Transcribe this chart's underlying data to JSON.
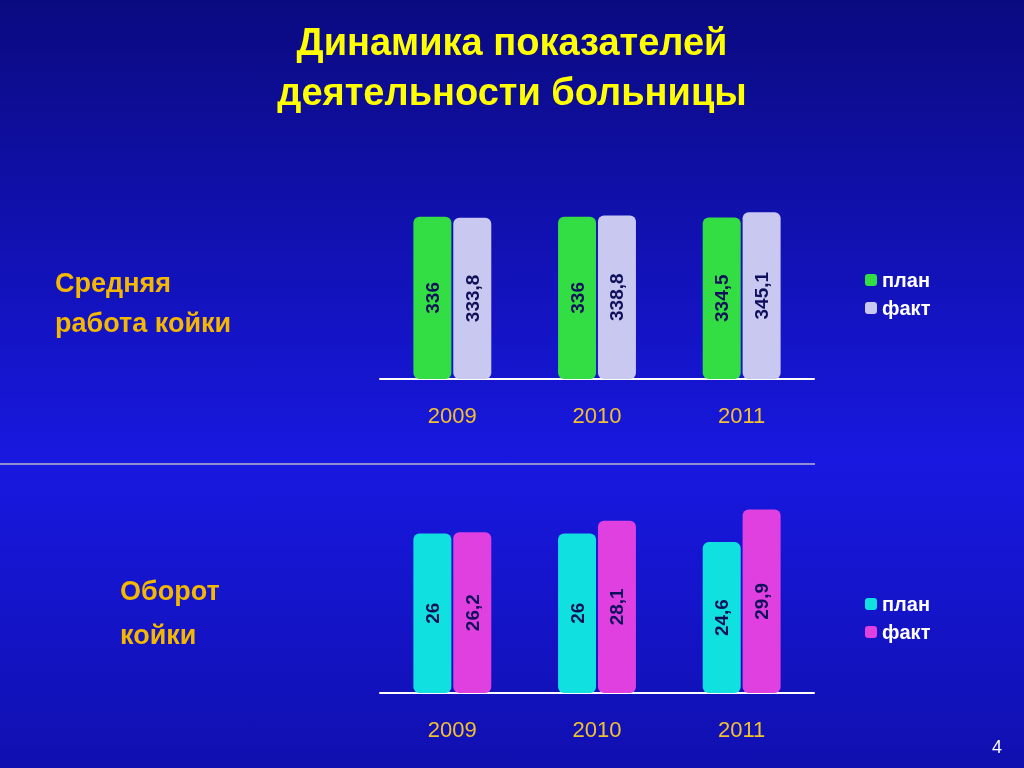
{
  "chart_data": [
    {
      "type": "bar",
      "title": "Динамика показателей\nдеятельности больницы",
      "subtitle": "Средняя\nработа койки",
      "categories": [
        "2009",
        "2010",
        "2011"
      ],
      "series": [
        {
          "name": "план",
          "color": "#33dd44",
          "values": [
            336,
            336,
            334.5
          ],
          "value_labels": [
            "336",
            "336",
            "334,5"
          ]
        },
        {
          "name": "факт",
          "color": "#c8c8f0",
          "values": [
            333.8,
            338.8,
            345.1
          ],
          "value_labels": [
            "333,8",
            "338,8",
            "345,1"
          ]
        }
      ],
      "legend": "right"
    },
    {
      "type": "bar",
      "title": "Оборот\nкойки",
      "categories": [
        "2009",
        "2010",
        "2011"
      ],
      "series": [
        {
          "name": "план",
          "color": "#11e0e0",
          "values": [
            26,
            26,
            24.6
          ],
          "value_labels": [
            "26",
            "26",
            "24,6"
          ]
        },
        {
          "name": "факт",
          "color": "#e040e0",
          "values": [
            26.2,
            28.1,
            29.9
          ],
          "value_labels": [
            "26,2",
            "28,1",
            "29,9"
          ]
        }
      ],
      "legend": "right",
      "annotations": [
        "4"
      ]
    }
  ]
}
